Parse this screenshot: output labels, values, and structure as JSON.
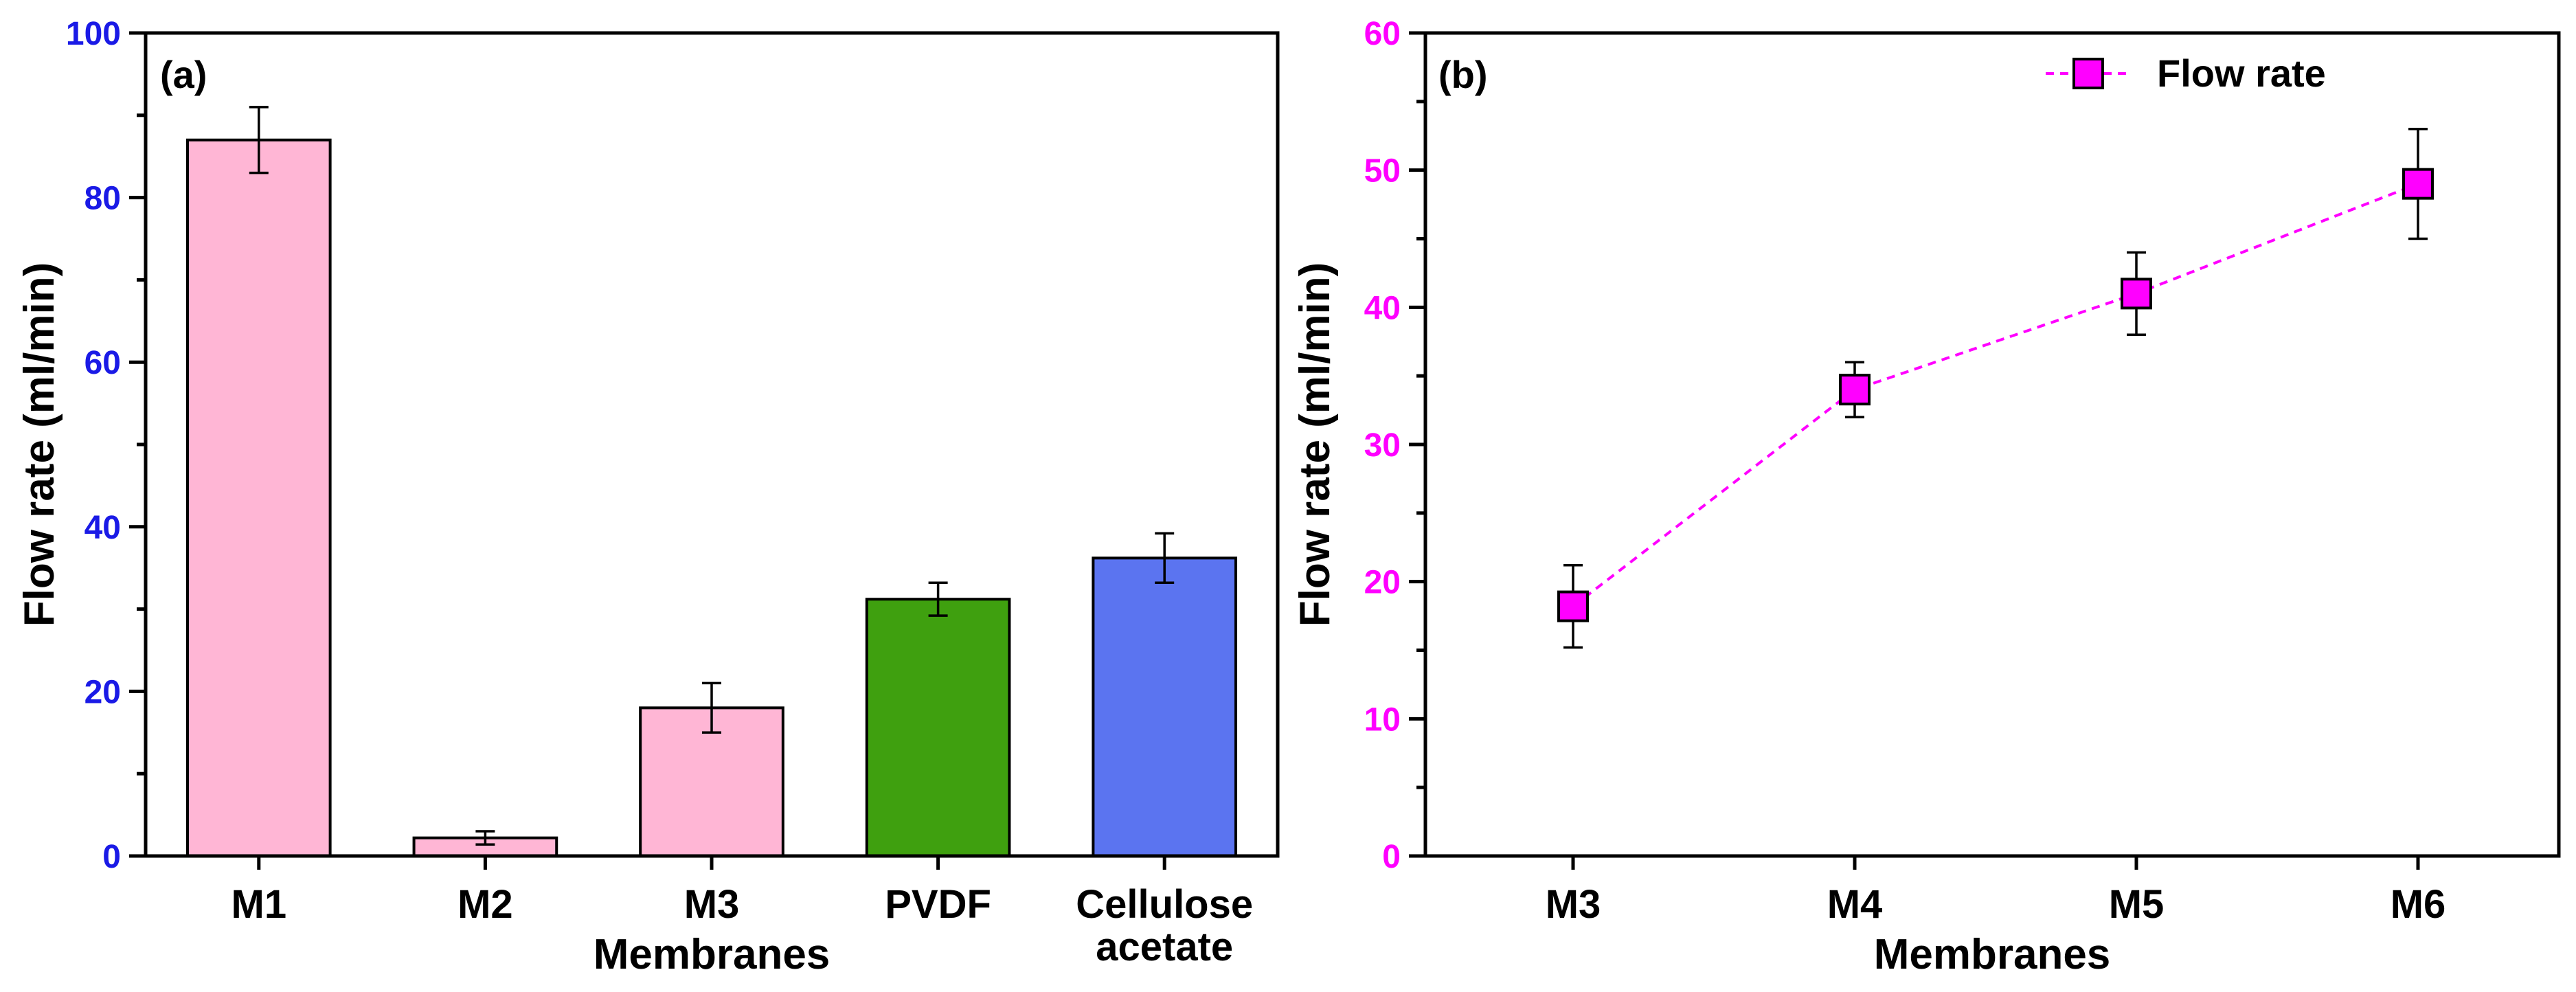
{
  "chart_data": [
    {
      "panel_label": "(a)",
      "type": "bar",
      "categories": [
        "M1",
        "M2",
        "M3",
        "PVDF",
        "Cellulose acetate"
      ],
      "category_lines": [
        [
          "M1"
        ],
        [
          "M2"
        ],
        [
          "M3"
        ],
        [
          "PVDF"
        ],
        [
          "Cellulose",
          "acetate"
        ]
      ],
      "values": [
        87,
        2.2,
        18,
        31.2,
        36.2
      ],
      "errors": [
        4,
        0.8,
        3,
        2,
        3
      ],
      "bar_colors": [
        "#ffb6d5",
        "#ffb6d5",
        "#ffb6d5",
        "#3fa00f",
        "#5b74f0"
      ],
      "xlabel": "Membranes",
      "ylabel": "Flow rate (ml/min)",
      "ylim": [
        0,
        100
      ],
      "yticks": [
        "0",
        "20",
        "40",
        "60",
        "80",
        "100"
      ],
      "ytick_color": "#1a1ae6"
    },
    {
      "panel_label": "(b)",
      "type": "line",
      "categories": [
        "M3",
        "M4",
        "M5",
        "M6"
      ],
      "series": [
        {
          "name": "Flow rate",
          "values": [
            18.2,
            34,
            41,
            49
          ],
          "errors": [
            3,
            2,
            3,
            4
          ],
          "color": "#ff00ff"
        }
      ],
      "xlabel": "Membranes",
      "ylabel": "Flow rate (ml/min)",
      "ylim": [
        0,
        60
      ],
      "yticks": [
        "0",
        "10",
        "20",
        "30",
        "40",
        "50",
        "60"
      ],
      "ytick_color": "#ff00ff",
      "legend": {
        "position": "top-right",
        "entries": [
          "Flow rate"
        ]
      }
    }
  ]
}
